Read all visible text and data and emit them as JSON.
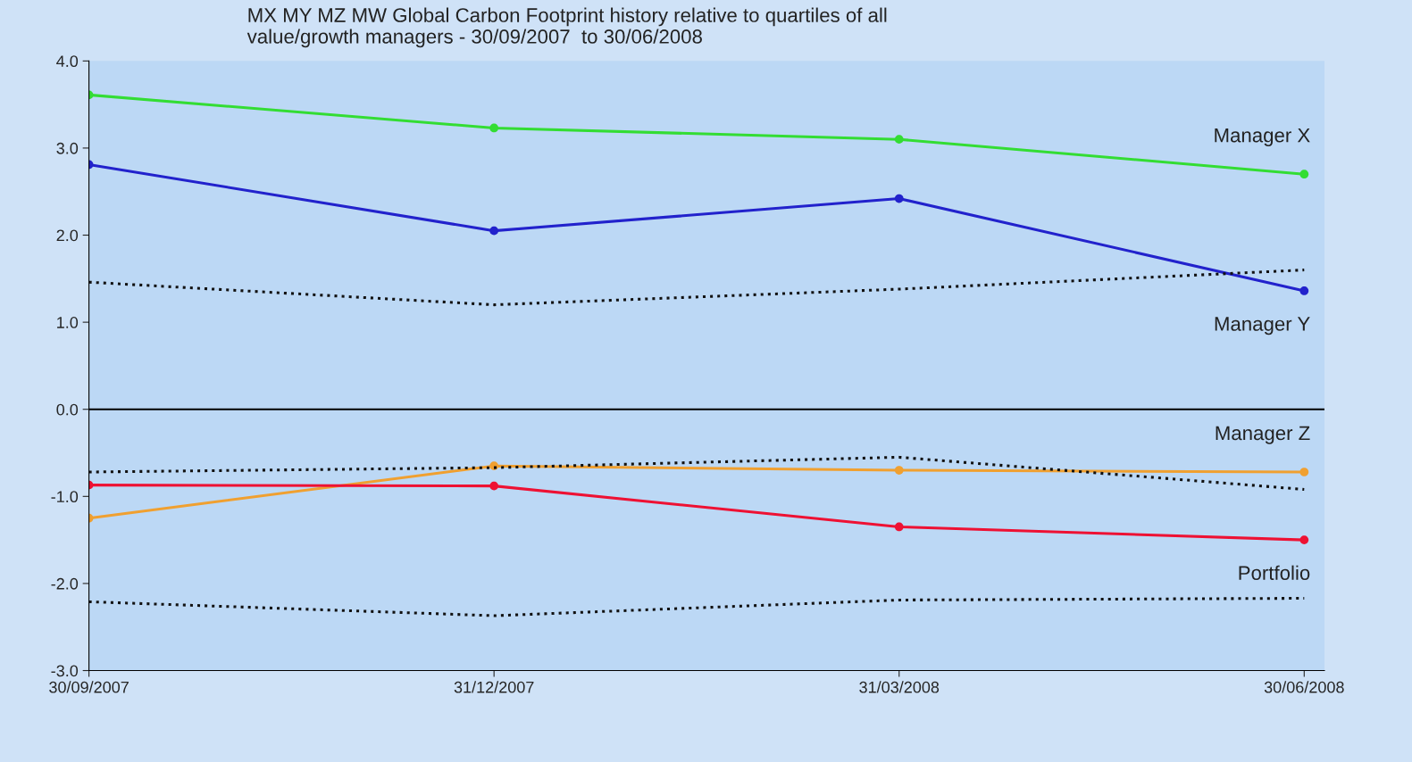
{
  "chart_data": {
    "type": "line",
    "title": "MX MY MZ MW Global Carbon Footprint history relative to quartiles of all\nvalue/growth managers - 30/09/2007  to 30/06/2008",
    "categories": [
      "30/09/2007",
      "31/12/2007",
      "31/03/2008",
      "30/06/2008"
    ],
    "series": [
      {
        "name": "Manager X",
        "color": "#33dd33",
        "values": [
          3.61,
          3.23,
          3.1,
          2.7
        ],
        "marker": "circle",
        "line_style": "solid"
      },
      {
        "name": "Manager Y",
        "color": "#2222cc",
        "values": [
          2.81,
          2.05,
          2.42,
          1.36
        ],
        "marker": "circle",
        "line_style": "solid"
      },
      {
        "name": "Manager Z",
        "color": "#f0a030",
        "values": [
          -1.25,
          -0.65,
          -0.7,
          -0.72
        ],
        "marker": "circle",
        "line_style": "solid"
      },
      {
        "name": "Portfolio",
        "color": "#ee1133",
        "values": [
          -0.87,
          -0.88,
          -1.35,
          -1.5
        ],
        "marker": "circle",
        "line_style": "solid"
      },
      {
        "color": "#111111",
        "values": [
          1.46,
          1.2,
          1.38,
          1.6
        ],
        "marker": "none",
        "line_style": "dotted"
      },
      {
        "color": "#111111",
        "values": [
          -0.72,
          -0.67,
          -0.55,
          -0.92
        ],
        "marker": "none",
        "line_style": "dotted"
      },
      {
        "color": "#111111",
        "values": [
          -2.21,
          -2.37,
          -2.19,
          -2.17
        ],
        "marker": "none",
        "line_style": "dotted"
      }
    ],
    "ylim": [
      -3,
      4
    ],
    "yticks": [
      {
        "value": -3,
        "label": "-3.0"
      },
      {
        "value": -2,
        "label": "-2.0"
      },
      {
        "value": -1,
        "label": "-1.0"
      },
      {
        "value": 0,
        "label": "0.0"
      },
      {
        "value": 1,
        "label": "1.0"
      },
      {
        "value": 2,
        "label": "2.0"
      },
      {
        "value": 3,
        "label": "3.0"
      },
      {
        "value": 4,
        "label": "4.0"
      }
    ],
    "ref_lines": [
      {
        "axis": "y",
        "value": 0,
        "color": "#000000",
        "line_style": "solid"
      }
    ],
    "grid": false,
    "legend": false
  }
}
